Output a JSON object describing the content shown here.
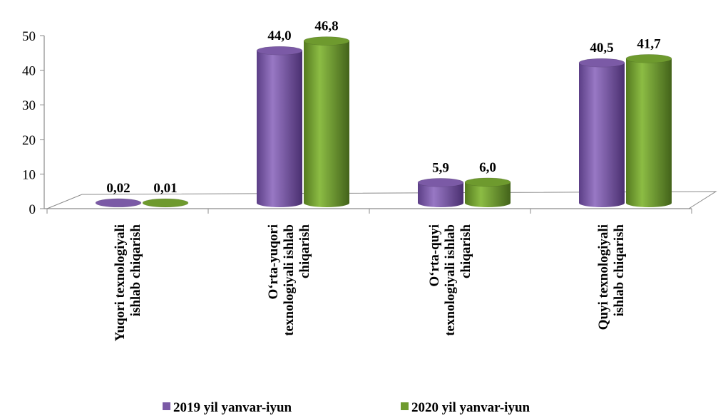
{
  "chart_data": {
    "type": "bar",
    "categories": [
      [
        "Yuqori texnologiyali",
        "ishlab chiqarish"
      ],
      [
        "O‘rta-yuqori",
        "texnologiyali ishlab",
        "chiqarish"
      ],
      [
        "O‘rta-quyi",
        "texnologiyali ishlab",
        "chiqarish"
      ],
      [
        "Quyi texnologiyali",
        "ishlab chiqarish"
      ]
    ],
    "series": [
      {
        "name": "2019 yil yanvar-iyun",
        "values": [
          0.02,
          44.0,
          5.9,
          40.5
        ],
        "labels": [
          "0,02",
          "44,0",
          "5,9",
          "40,5"
        ],
        "color": "#7B5AA6"
      },
      {
        "name": "2020 yil yanvar-iyun",
        "values": [
          0.01,
          46.8,
          6.0,
          41.7
        ],
        "labels": [
          "0,01",
          "46,8",
          "6,0",
          "41,7"
        ],
        "color": "#6E9A2E"
      }
    ],
    "yticks": [
      "0",
      "10",
      "20",
      "30",
      "40",
      "50"
    ],
    "ylim": [
      0,
      50
    ],
    "grid": false,
    "legend_position": "bottom",
    "style": "3d-cylinder"
  }
}
